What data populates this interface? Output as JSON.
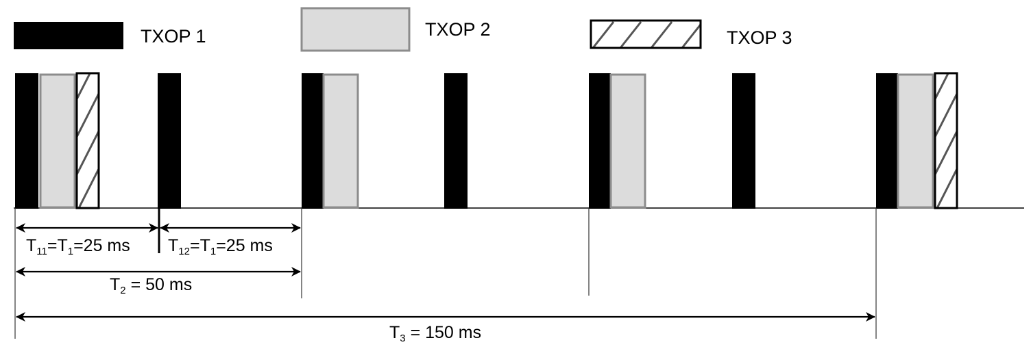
{
  "legend": {
    "txop1": "TXOP 1",
    "txop2": "TXOP 2",
    "txop3": "TXOP 3"
  },
  "intervals": {
    "t11": {
      "main": "T",
      "sub": "11",
      "rest": "=T",
      "sub2": "1",
      "tail": "=25 ms"
    },
    "t12": {
      "main": "T",
      "sub": "12",
      "rest": "=T",
      "sub2": "1",
      "tail": "=25 ms"
    },
    "t2": {
      "main": "T",
      "sub": "2",
      "tail": " = 50 ms"
    },
    "t3": {
      "main": "T",
      "sub": "3",
      "tail": " = 150 ms"
    }
  },
  "colors": {
    "txop1": "#000000",
    "txop2_fill": "#dcdcdc",
    "txop2_border": "#8c8c8c",
    "txop3_border": "#000000"
  }
}
